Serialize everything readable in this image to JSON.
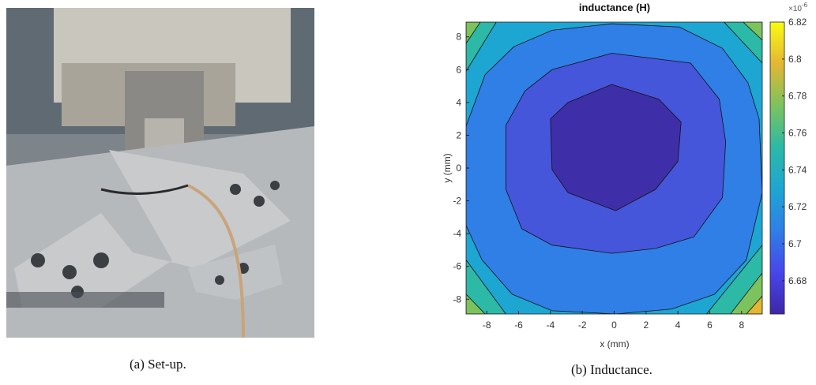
{
  "captions": [
    "(a) Set-up.",
    "(b) Inductance."
  ],
  "chart_data": {
    "type": "contour",
    "title": "inductance (H)",
    "x_label": "x (mm)",
    "y_label": "y (mm)",
    "xlim": [
      -9.3,
      9.3
    ],
    "ylim": [
      -8.9,
      8.9
    ],
    "xticks": [
      -8,
      -6,
      -4,
      -2,
      0,
      2,
      4,
      6,
      8
    ],
    "yticks": [
      -8,
      -6,
      -4,
      -2,
      0,
      2,
      4,
      6,
      8
    ],
    "background_color": "#1ea6d2",
    "line_color": "#111111",
    "contours": [
      {
        "level": 6.72,
        "color": "#2f7fe6",
        "x": [
          -9.3,
          -8.1,
          -6.3,
          -3.9,
          -0.15,
          4.1,
          6.8,
          8.4,
          9.1,
          9.3,
          8.3,
          6.3,
          3.6,
          0.1,
          -3.9,
          -6.4,
          -8.3,
          -9.3
        ],
        "y": [
          2.55,
          5.7,
          7.4,
          8.4,
          8.8,
          8.6,
          7.3,
          5.2,
          3.0,
          -1.5,
          -5.6,
          -7.7,
          -8.6,
          -8.9,
          -8.7,
          -7.7,
          -5.6,
          -3.5
        ]
      },
      {
        "level": 6.7,
        "color": "#4656da",
        "x": [
          -6.8,
          -5.6,
          -3.9,
          -0.15,
          4.8,
          6.6,
          7.0,
          6.8,
          5.0,
          2.6,
          -0.15,
          -3.9,
          -5.8,
          -6.8
        ],
        "y": [
          2.6,
          4.7,
          6.0,
          7.0,
          6.4,
          4.2,
          1.6,
          -1.8,
          -4.2,
          -4.9,
          -5.2,
          -4.7,
          -3.7,
          -1.3
        ]
      },
      {
        "level": 6.68,
        "color": "#3e2fa8",
        "x": [
          -4.0,
          -2.9,
          -0.15,
          2.8,
          4.2,
          4.0,
          2.6,
          0.1,
          -2.9,
          -3.9
        ],
        "y": [
          3.0,
          4.0,
          5.1,
          4.2,
          2.8,
          0.4,
          -1.3,
          -2.6,
          -1.5,
          -0.1
        ]
      },
      {
        "level": 6.74,
        "color": "#2cb9a6",
        "x": [
          -9.3,
          -7.4,
          -9.3
        ],
        "y": [
          5.9,
          8.9,
          8.9
        ]
      },
      {
        "level": 6.76,
        "color": "#7cc35e",
        "x": [
          -9.3,
          -8.4,
          -9.3
        ],
        "y": [
          7.6,
          8.9,
          8.9
        ]
      },
      {
        "level": 6.74,
        "color": "#2cb9a6",
        "x": [
          6.9,
          9.3,
          9.3
        ],
        "y": [
          8.9,
          6.4,
          8.9
        ]
      },
      {
        "level": 6.76,
        "color": "#7cc35e",
        "x": [
          8.1,
          9.3,
          9.3
        ],
        "y": [
          8.9,
          7.8,
          8.9
        ]
      },
      {
        "level": 6.74,
        "color": "#2cb9a6",
        "x": [
          -9.3,
          -6.8,
          -9.3
        ],
        "y": [
          -5.6,
          -8.9,
          -8.9
        ]
      },
      {
        "level": 6.76,
        "color": "#7cc35e",
        "x": [
          -9.3,
          -8.1,
          -9.3
        ],
        "y": [
          -7.7,
          -8.9,
          -8.9
        ]
      },
      {
        "level": 6.74,
        "color": "#2cb9a6",
        "x": [
          9.3,
          5.8,
          9.3
        ],
        "y": [
          -4.7,
          -8.9,
          -8.9
        ]
      },
      {
        "level": 6.76,
        "color": "#7cc35e",
        "x": [
          9.3,
          7.3,
          9.3
        ],
        "y": [
          -6.4,
          -8.9,
          -8.9
        ]
      },
      {
        "level": 6.78,
        "color": "#e3b733",
        "x": [
          9.3,
          8.3,
          9.3
        ],
        "y": [
          -7.8,
          -8.9,
          -8.9
        ]
      }
    ],
    "colorbar": {
      "lim": [
        6.662,
        6.82
      ],
      "ticks": [
        6.68,
        6.7,
        6.72,
        6.74,
        6.76,
        6.78,
        6.8,
        6.82
      ],
      "exponent_base": "×10",
      "exponent": "-6",
      "colormap": [
        "#3e26a8",
        "#4746eb",
        "#2f7fe6",
        "#1ea6d2",
        "#2cb9a6",
        "#7cc35e",
        "#e3b733",
        "#f9fb14"
      ]
    }
  }
}
